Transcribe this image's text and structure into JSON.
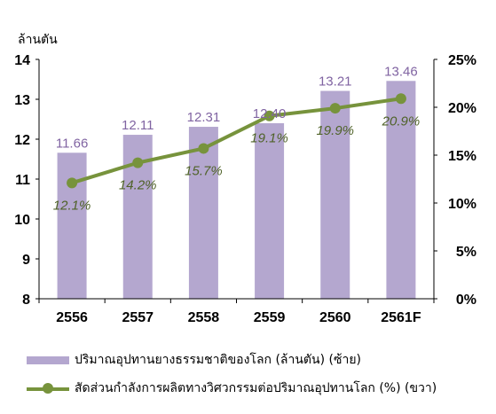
{
  "chart_data": {
    "type": "bar+line",
    "categories": [
      "2556",
      "2557",
      "2558",
      "2559",
      "2560",
      "2561F"
    ],
    "bar_series": {
      "name": "ปริมาณอุปทานยางธรรมชาติของโลก  (ล้านตัน) (ซ้าย)",
      "values": [
        11.66,
        12.11,
        12.31,
        12.4,
        13.21,
        13.46
      ],
      "labels": [
        "11.66",
        "12.11",
        "12.31",
        "12.40",
        "13.21",
        "13.46"
      ],
      "color": "#b4a7cf"
    },
    "line_series": {
      "name": "สัดส่วนกำลังการผลิตทางวิศวกรรมต่อปริมาณอุปทานโลก  (%) (ขวา)",
      "values": [
        12.1,
        14.2,
        15.7,
        19.1,
        19.9,
        20.9
      ],
      "labels": [
        "12.1%",
        "14.2%",
        "15.7%",
        "19.1%",
        "19.9%",
        "20.9%"
      ],
      "color": "#77933c"
    },
    "y_left": {
      "label": "ล้านตัน",
      "min": 8,
      "max": 14,
      "ticks": [
        "8",
        "9",
        "10",
        "11",
        "12",
        "13",
        "14"
      ]
    },
    "y_right": {
      "min": 0,
      "max": 25,
      "ticks": [
        "0%",
        "5%",
        "10%",
        "15%",
        "20%",
        "25%"
      ]
    },
    "grid": false,
    "legend_position": "bottom"
  }
}
